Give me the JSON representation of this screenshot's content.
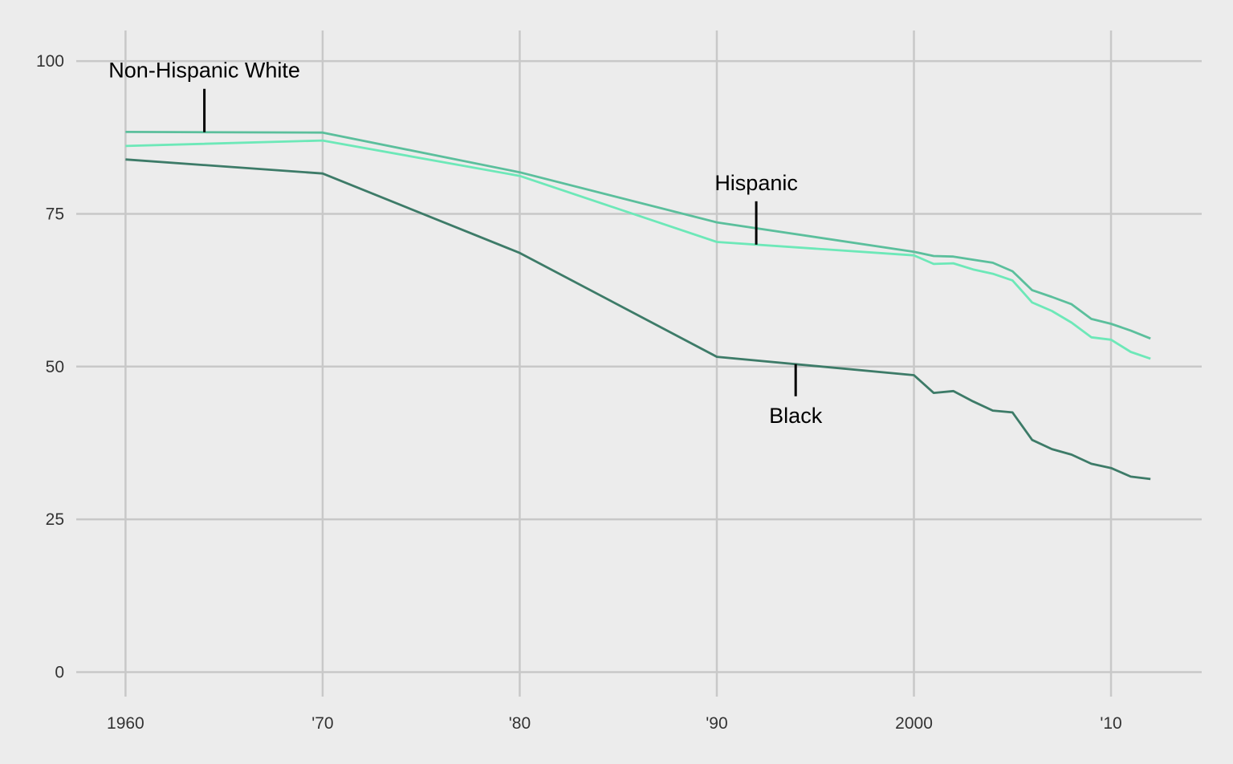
{
  "chart_data": {
    "type": "line",
    "title": "",
    "xlabel": "",
    "ylabel": "",
    "xlim": [
      1957.5,
      2014.6
    ],
    "ylim": [
      -4,
      105
    ],
    "grid": true,
    "y_ticks": [
      0,
      25,
      50,
      75,
      100
    ],
    "x_ticks": [
      {
        "value": 1960,
        "label": "1960"
      },
      {
        "value": 1970,
        "label": "'70"
      },
      {
        "value": 1980,
        "label": "'80"
      },
      {
        "value": 1990,
        "label": "'90"
      },
      {
        "value": 2000,
        "label": "2000"
      },
      {
        "value": 2010,
        "label": "'10"
      }
    ],
    "x": [
      1960,
      1970,
      1980,
      1990,
      2000,
      2001,
      2002,
      2003,
      2004,
      2005,
      2006,
      2007,
      2008,
      2009,
      2010,
      2011,
      2012
    ],
    "series": [
      {
        "name": "Non-Hispanic White",
        "color": "#5bbf9c",
        "values": [
          88.4,
          88.3,
          81.8,
          73.6,
          68.8,
          68.1,
          68.0,
          67.5,
          67.0,
          65.6,
          62.5,
          61.4,
          60.2,
          57.8,
          57.0,
          55.9,
          54.6
        ]
      },
      {
        "name": "Hispanic",
        "color": "#6de8b8",
        "values": [
          86.1,
          87.0,
          81.2,
          70.4,
          68.2,
          66.8,
          66.9,
          65.9,
          65.2,
          64.1,
          60.5,
          59.1,
          57.2,
          54.8,
          54.4,
          52.4,
          51.3
        ]
      },
      {
        "name": "Black",
        "color": "#3d7b68",
        "values": [
          83.9,
          81.6,
          68.6,
          51.6,
          48.6,
          45.7,
          46.0,
          44.3,
          42.8,
          42.5,
          38.0,
          36.5,
          35.6,
          34.1,
          33.4,
          32.0,
          31.6
        ]
      }
    ],
    "annotations": [
      {
        "text": "Non-Hispanic White",
        "series": 0,
        "x": 1964,
        "position": "above"
      },
      {
        "text": "Hispanic",
        "series": 1,
        "x": 1992,
        "position": "above"
      },
      {
        "text": "Black",
        "series": 2,
        "x": 1994,
        "position": "below"
      }
    ]
  }
}
